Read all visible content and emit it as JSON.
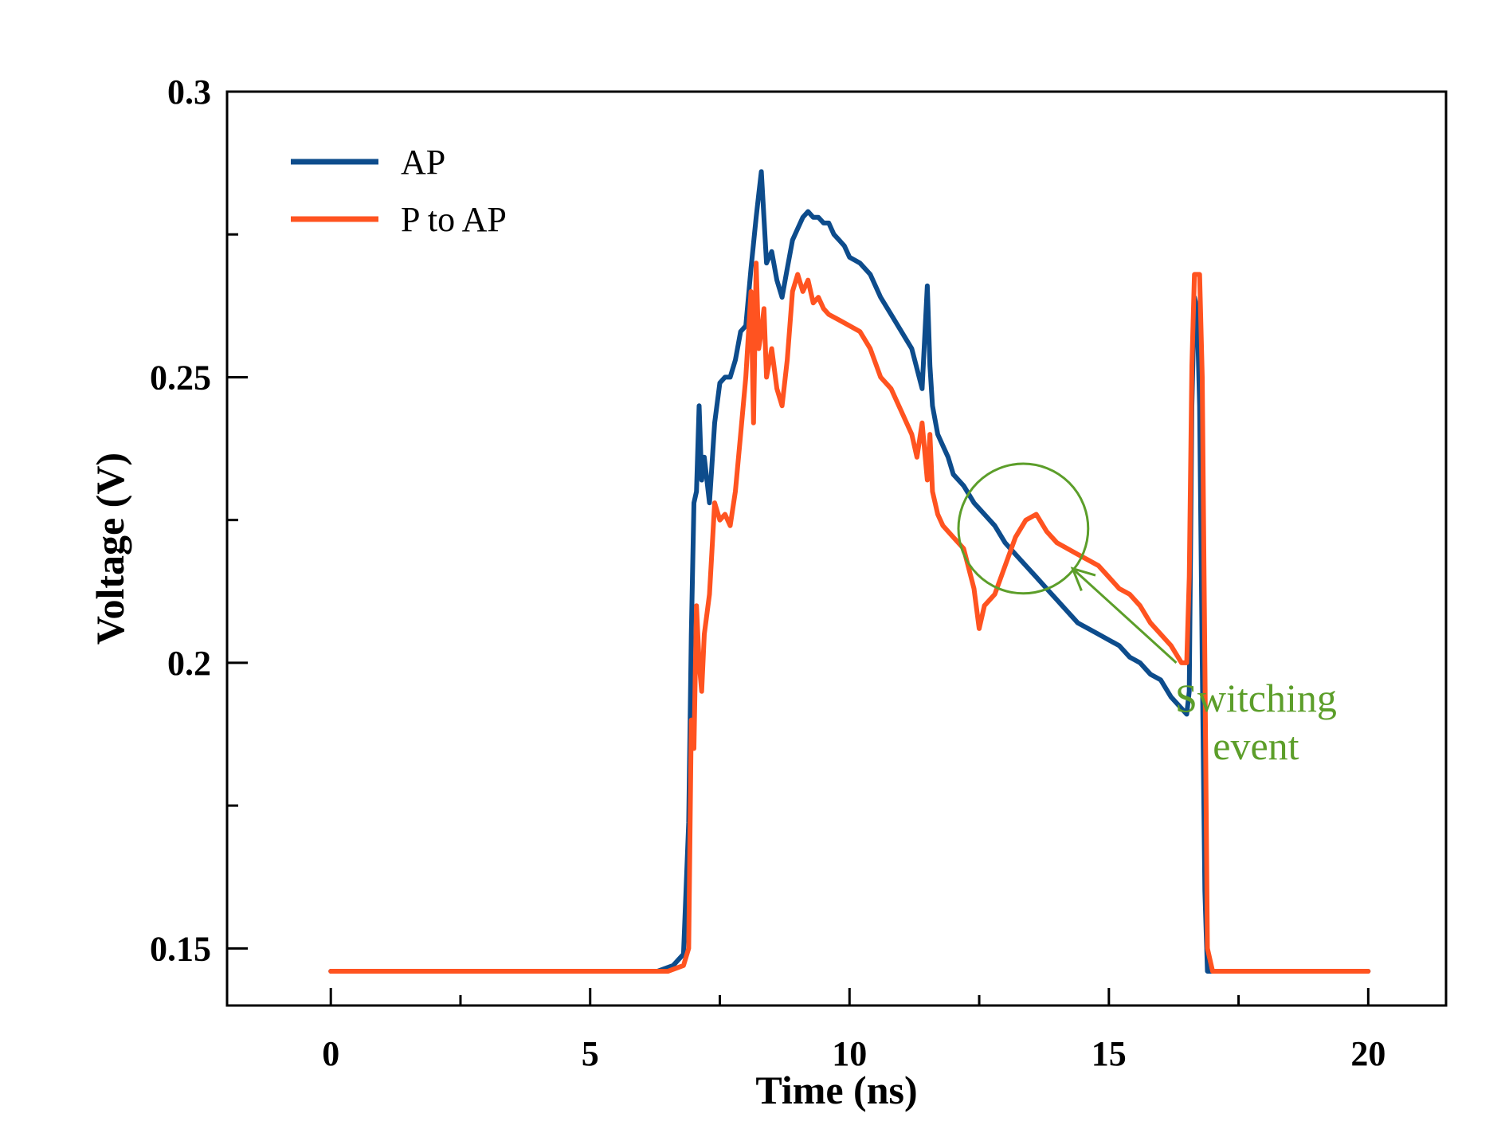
{
  "chart_data": {
    "type": "line",
    "xlabel": "Time (ns)",
    "ylabel": "Voltage (V)",
    "xlim": [
      -2,
      21.5
    ],
    "ylim": [
      0.14,
      0.3
    ],
    "xticks": [
      0,
      5,
      10,
      15,
      20
    ],
    "xtick_labels": [
      "0",
      "5",
      "10",
      "15",
      "20"
    ],
    "xticks_minor": [
      2.5,
      7.5,
      12.5,
      17.5
    ],
    "yticks": [
      0.15,
      0.2,
      0.25,
      0.3
    ],
    "ytick_labels": [
      "0.15",
      "0.2",
      "0.25",
      "0.3"
    ],
    "yticks_minor": [
      0.175,
      0.225,
      0.275
    ],
    "grid": false,
    "legend_position": "top-left",
    "series": [
      {
        "name": "AP",
        "color": "#0d4c8c",
        "x": [
          0,
          6.3,
          6.6,
          6.8,
          6.9,
          6.95,
          7.0,
          7.05,
          7.1,
          7.15,
          7.2,
          7.3,
          7.4,
          7.5,
          7.6,
          7.7,
          7.8,
          7.9,
          8.0,
          8.1,
          8.2,
          8.25,
          8.3,
          8.4,
          8.5,
          8.6,
          8.7,
          8.8,
          8.9,
          9.0,
          9.1,
          9.2,
          9.3,
          9.4,
          9.5,
          9.6,
          9.7,
          9.8,
          9.9,
          10.0,
          10.2,
          10.4,
          10.6,
          10.8,
          11.0,
          11.2,
          11.4,
          11.5,
          11.55,
          11.6,
          11.7,
          11.8,
          11.9,
          12.0,
          12.2,
          12.4,
          12.6,
          12.8,
          13.0,
          13.2,
          13.4,
          13.6,
          13.8,
          14.0,
          14.2,
          14.4,
          14.6,
          14.8,
          15.0,
          15.2,
          15.4,
          15.6,
          15.8,
          16.0,
          16.2,
          16.4,
          16.5,
          16.55,
          16.6,
          16.65,
          16.7,
          16.75,
          16.8,
          16.85,
          16.9,
          17.0,
          17.1,
          18.0,
          20.0
        ],
        "y": [
          0.146,
          0.146,
          0.147,
          0.149,
          0.172,
          0.205,
          0.228,
          0.23,
          0.245,
          0.232,
          0.236,
          0.228,
          0.242,
          0.249,
          0.25,
          0.25,
          0.253,
          0.258,
          0.259,
          0.269,
          0.278,
          0.282,
          0.286,
          0.27,
          0.272,
          0.267,
          0.264,
          0.269,
          0.274,
          0.276,
          0.278,
          0.279,
          0.278,
          0.278,
          0.277,
          0.277,
          0.275,
          0.274,
          0.273,
          0.271,
          0.27,
          0.268,
          0.264,
          0.261,
          0.258,
          0.255,
          0.248,
          0.266,
          0.252,
          0.245,
          0.24,
          0.238,
          0.236,
          0.233,
          0.231,
          0.228,
          0.226,
          0.224,
          0.221,
          0.219,
          0.217,
          0.215,
          0.213,
          0.211,
          0.209,
          0.207,
          0.206,
          0.205,
          0.204,
          0.203,
          0.201,
          0.2,
          0.198,
          0.197,
          0.194,
          0.192,
          0.191,
          0.195,
          0.245,
          0.264,
          0.262,
          0.245,
          0.2,
          0.16,
          0.146,
          0.146,
          0.146,
          0.146,
          0.146
        ]
      },
      {
        "name": "P to AP",
        "color": "#ff5320",
        "x": [
          0,
          6.5,
          6.8,
          6.9,
          6.95,
          7.0,
          7.05,
          7.1,
          7.15,
          7.2,
          7.3,
          7.4,
          7.5,
          7.6,
          7.7,
          7.8,
          7.9,
          8.0,
          8.1,
          8.15,
          8.2,
          8.25,
          8.3,
          8.35,
          8.4,
          8.5,
          8.6,
          8.7,
          8.8,
          8.9,
          9.0,
          9.1,
          9.2,
          9.3,
          9.4,
          9.5,
          9.6,
          9.8,
          10.0,
          10.2,
          10.4,
          10.6,
          10.8,
          11.0,
          11.2,
          11.3,
          11.4,
          11.5,
          11.55,
          11.6,
          11.7,
          11.8,
          11.9,
          12.0,
          12.2,
          12.4,
          12.5,
          12.6,
          12.8,
          13.0,
          13.2,
          13.4,
          13.6,
          13.8,
          14.0,
          14.2,
          14.4,
          14.6,
          14.8,
          15.0,
          15.2,
          15.4,
          15.6,
          15.8,
          16.0,
          16.2,
          16.4,
          16.5,
          16.55,
          16.6,
          16.65,
          16.7,
          16.75,
          16.8,
          16.85,
          16.9,
          17.0,
          17.1,
          18.0,
          20.0
        ],
        "y": [
          0.146,
          0.146,
          0.147,
          0.15,
          0.19,
          0.185,
          0.21,
          0.2,
          0.195,
          0.205,
          0.212,
          0.228,
          0.225,
          0.226,
          0.224,
          0.23,
          0.24,
          0.25,
          0.265,
          0.242,
          0.27,
          0.255,
          0.258,
          0.262,
          0.25,
          0.255,
          0.248,
          0.245,
          0.253,
          0.265,
          0.268,
          0.265,
          0.267,
          0.263,
          0.264,
          0.262,
          0.261,
          0.26,
          0.259,
          0.258,
          0.255,
          0.25,
          0.248,
          0.244,
          0.24,
          0.236,
          0.242,
          0.232,
          0.24,
          0.23,
          0.226,
          0.224,
          0.223,
          0.222,
          0.22,
          0.213,
          0.206,
          0.21,
          0.212,
          0.217,
          0.222,
          0.225,
          0.226,
          0.223,
          0.221,
          0.22,
          0.219,
          0.218,
          0.217,
          0.215,
          0.213,
          0.212,
          0.21,
          0.207,
          0.205,
          0.203,
          0.2,
          0.2,
          0.215,
          0.252,
          0.268,
          0.268,
          0.268,
          0.25,
          0.2,
          0.15,
          0.146,
          0.146,
          0.146,
          0.146
        ]
      }
    ],
    "annotations": [
      {
        "text_lines": [
          "Switching",
          "event"
        ],
        "color": "#5c9e2a",
        "circle_center": [
          13.35,
          0.2235
        ],
        "circle_radius_x": 1.25,
        "arrow_from": [
          16.3,
          0.2
        ],
        "arrow_to": [
          14.3,
          0.2165
        ],
        "text_anchor_point": [
          16.3,
          0.193
        ]
      }
    ]
  }
}
